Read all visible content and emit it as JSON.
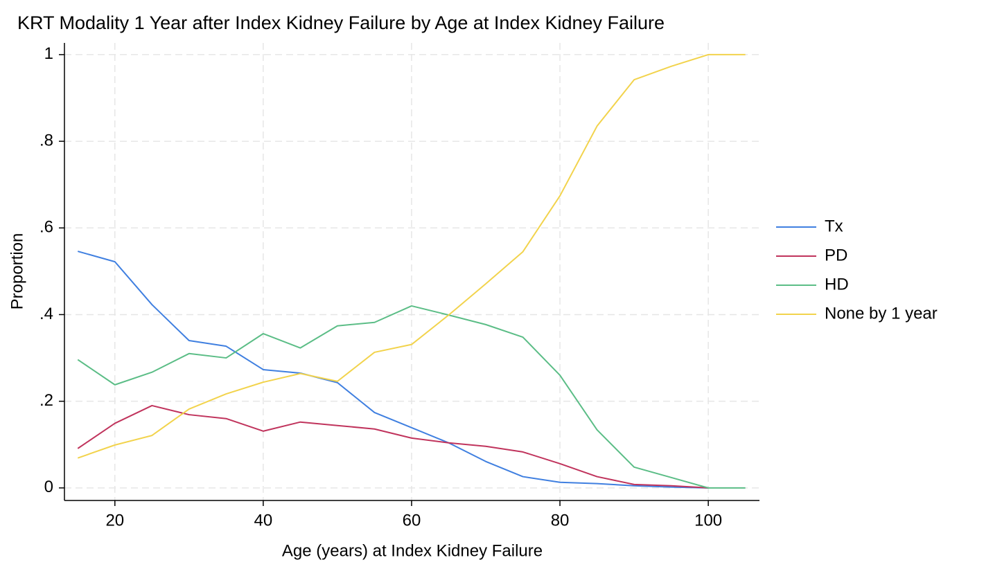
{
  "chart_data": {
    "type": "line",
    "title": "KRT Modality 1 Year after Index Kidney Failure by Age at Index Kidney Failure",
    "x_label": "Age (years) at Index Kidney Failure",
    "y_label": "Proportion",
    "x": [
      15,
      20,
      25,
      30,
      35,
      40,
      45,
      50,
      55,
      60,
      65,
      70,
      75,
      80,
      85,
      90,
      95,
      100,
      105
    ],
    "series": [
      {
        "name": "Tx",
        "color": "#3f7fe0",
        "values": [
          0.546,
          0.522,
          0.423,
          0.34,
          0.327,
          0.273,
          0.265,
          0.243,
          0.174,
          0.139,
          0.104,
          0.061,
          0.026,
          0.013,
          0.01,
          0.005,
          0.002,
          0,
          null
        ]
      },
      {
        "name": "PD",
        "color": "#c0335c",
        "values": [
          0.091,
          0.149,
          0.19,
          0.169,
          0.16,
          0.131,
          0.152,
          0.144,
          0.136,
          0.115,
          0.104,
          0.096,
          0.083,
          0.056,
          0.026,
          0.008,
          0.005,
          0,
          null
        ]
      },
      {
        "name": "HD",
        "color": "#5bbd86",
        "values": [
          0.296,
          0.238,
          0.267,
          0.31,
          0.3,
          0.356,
          0.323,
          0.374,
          0.382,
          0.42,
          0.399,
          0.377,
          0.348,
          0.26,
          0.134,
          0.048,
          0.024,
          0,
          0
        ]
      },
      {
        "name": "None by 1 year",
        "color": "#f2d34c",
        "values": [
          0.069,
          0.099,
          0.121,
          0.182,
          0.217,
          0.244,
          0.264,
          0.246,
          0.313,
          0.331,
          0.399,
          0.471,
          0.545,
          0.674,
          0.835,
          0.942,
          0.973,
          1,
          1
        ]
      }
    ],
    "xlim": [
      13.2,
      106.9
    ],
    "ylim": [
      -0.029,
      1.027
    ],
    "xticks": [
      20,
      40,
      60,
      80,
      100
    ],
    "yticks": [
      0,
      {
        "value": 0.2,
        "label": ".2"
      },
      {
        "value": 0.4,
        "label": ".4"
      },
      {
        "value": 0.6,
        "label": ".6"
      },
      {
        "value": 0.8,
        "label": ".8"
      },
      1
    ],
    "grid": true,
    "legend": "right"
  }
}
